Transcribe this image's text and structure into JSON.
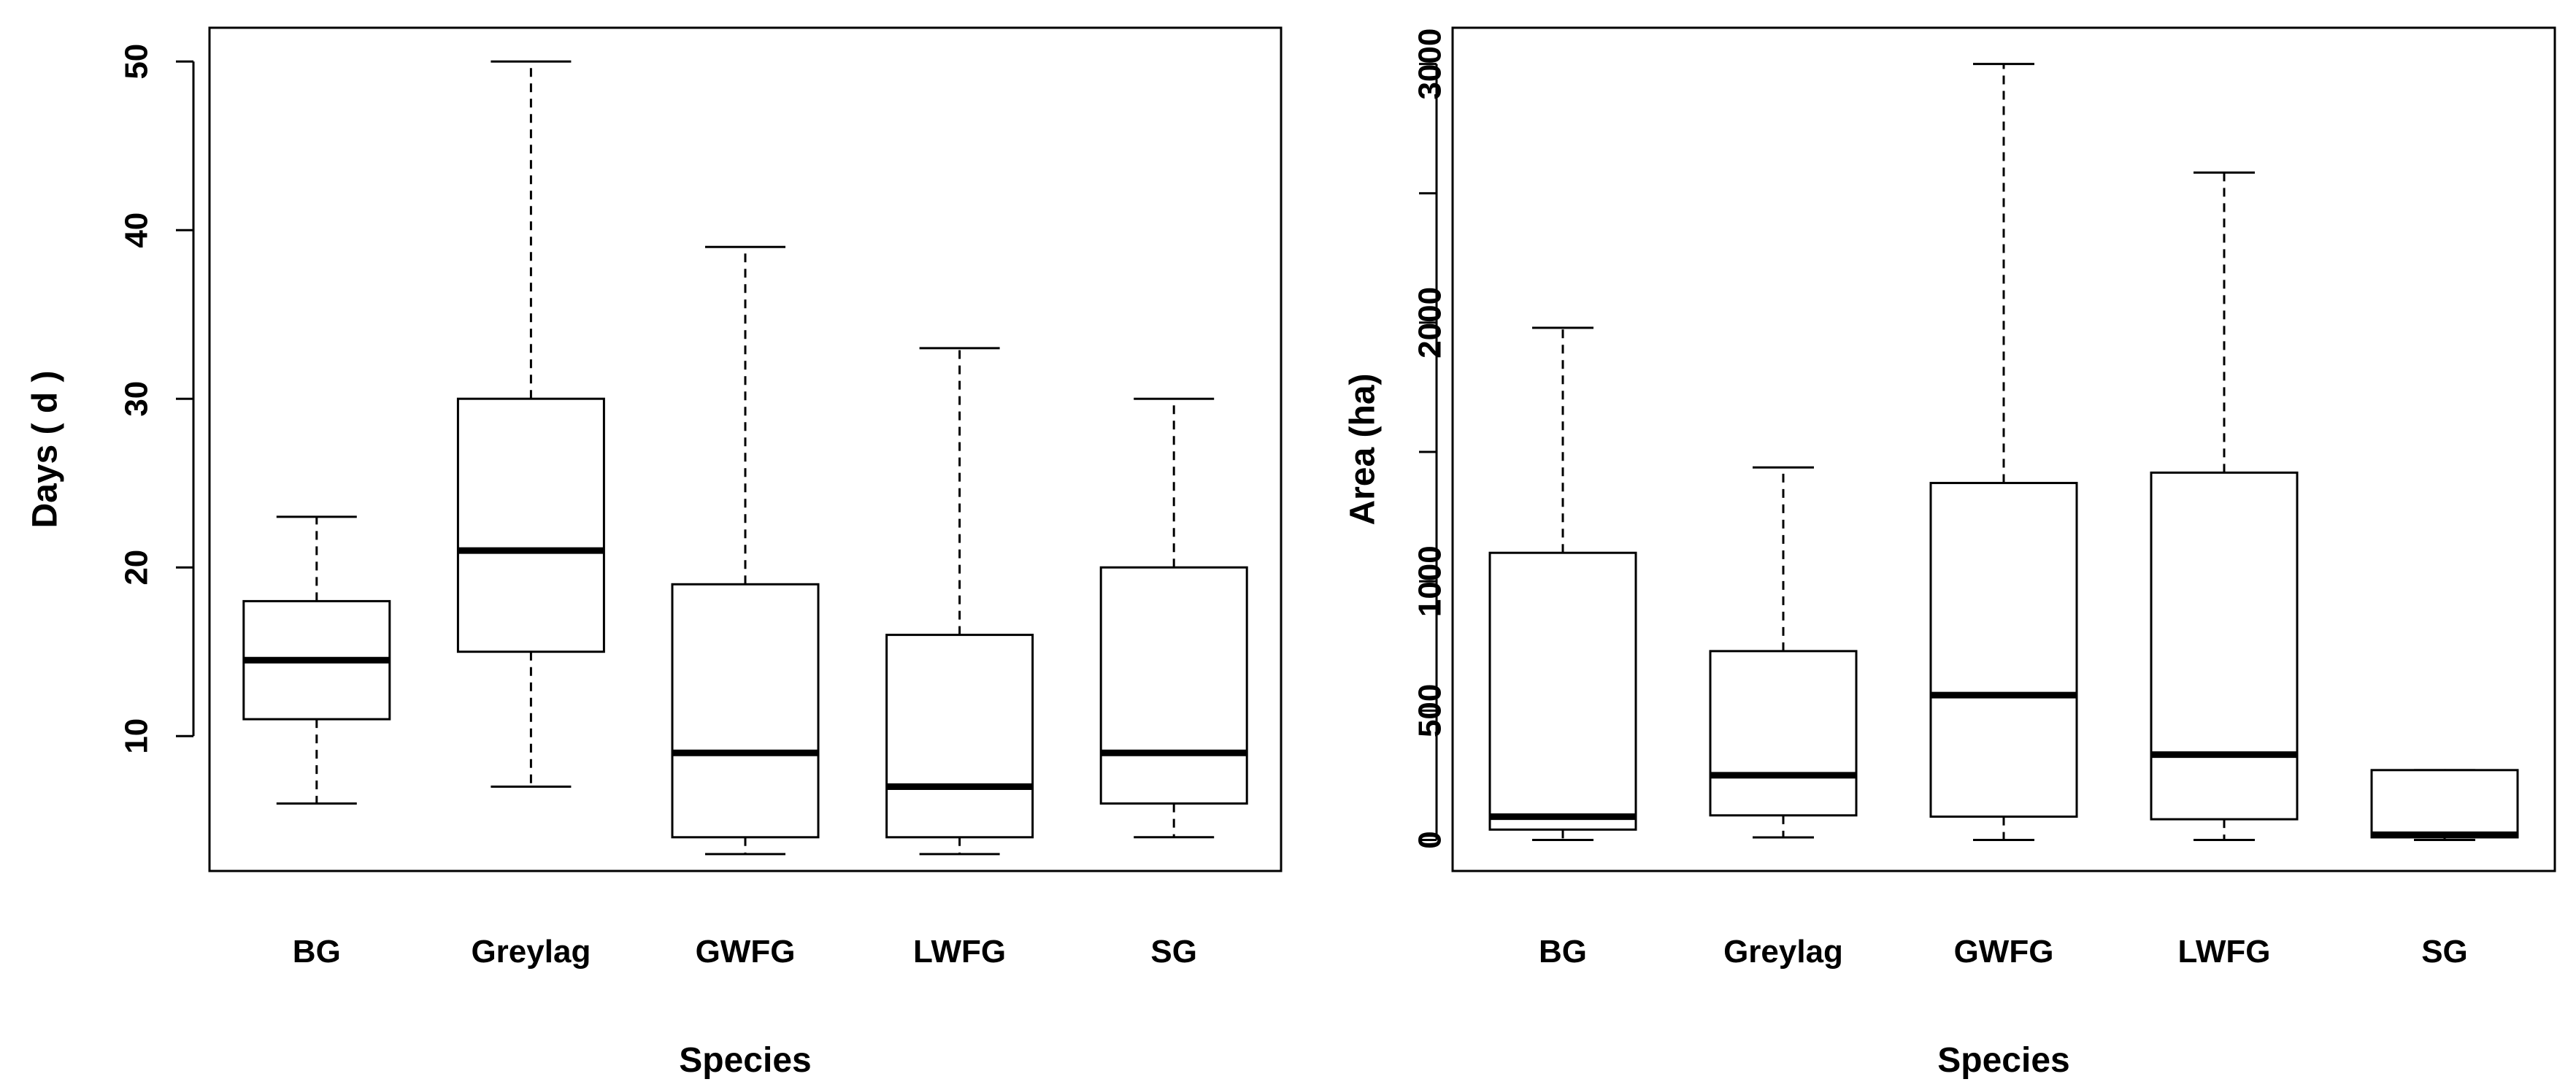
{
  "chart_data": [
    {
      "type": "boxplot",
      "title": "",
      "xlabel": "Species",
      "ylabel": "Days ( d )",
      "categories": [
        "BG",
        "Greylag",
        "GWFG",
        "LWFG",
        "SG"
      ],
      "y_ticks": [
        10,
        20,
        30,
        40,
        50
      ],
      "ylim": [
        2,
        52
      ],
      "boxes": [
        {
          "category": "BG",
          "min": 6,
          "q1": 11,
          "median": 14.5,
          "q3": 18,
          "max": 23
        },
        {
          "category": "Greylag",
          "min": 7,
          "q1": 15,
          "median": 21,
          "q3": 30,
          "max": 50
        },
        {
          "category": "GWFG",
          "min": 3,
          "q1": 4,
          "median": 9,
          "q3": 19,
          "max": 39
        },
        {
          "category": "LWFG",
          "min": 3,
          "q1": 4,
          "median": 7,
          "q3": 16,
          "max": 33
        },
        {
          "category": "SG",
          "min": 4,
          "q1": 6,
          "median": 9,
          "q3": 20,
          "max": 30
        }
      ]
    },
    {
      "type": "boxplot",
      "title": "",
      "xlabel": "Species",
      "ylabel": "Area (ha)",
      "categories": [
        "BG",
        "Greylag",
        "GWFG",
        "LWFG",
        "SG"
      ],
      "y_ticks": [
        0,
        500,
        1000,
        2000,
        3000
      ],
      "y_minor_ticks": [
        1500,
        2500
      ],
      "ylim": [
        -120,
        3140
      ],
      "boxes": [
        {
          "category": "BG",
          "min": 0,
          "q1": 40,
          "median": 90,
          "q3": 1110,
          "max": 1980
        },
        {
          "category": "Greylag",
          "min": 10,
          "q1": 95,
          "median": 250,
          "q3": 730,
          "max": 1440
        },
        {
          "category": "GWFG",
          "min": 0,
          "q1": 90,
          "median": 560,
          "q3": 1380,
          "max": 3000
        },
        {
          "category": "LWFG",
          "min": 0,
          "q1": 80,
          "median": 330,
          "q3": 1420,
          "max": 2580
        },
        {
          "category": "SG",
          "min": 0,
          "q1": 10,
          "median": 20,
          "q3": 270,
          "max": 270
        }
      ]
    }
  ]
}
